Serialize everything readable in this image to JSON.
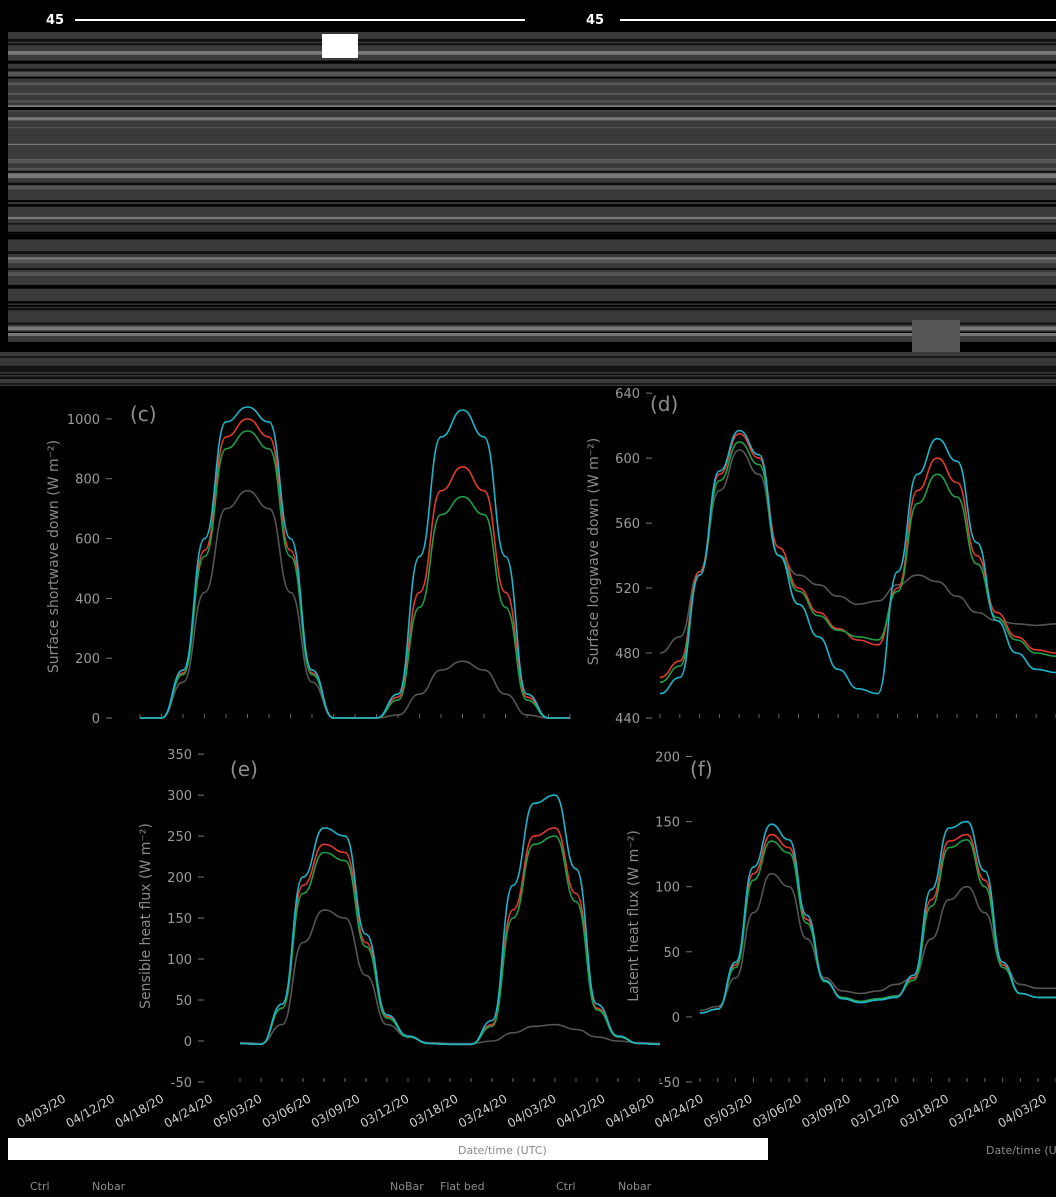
{
  "overlay": {
    "top_left_number": "45",
    "top_right_number": "45"
  },
  "x_tick_labels": [
    "04/03/20",
    "04/12/20",
    "04/18/20",
    "04/24/20",
    "05/03/20",
    "03/06/20",
    "03/09/20",
    "03/12/20",
    "03/18/20",
    "03/24/20",
    "04/03/20",
    "04/12/20",
    "04/18/20",
    "04/24/20",
    "05/03/20",
    "03/06/20",
    "03/09/20",
    "03/12/20",
    "03/18/20",
    "03/24/20",
    "04/03/20"
  ],
  "x_axis_label": "Date/time (UTC)",
  "legend_fragments": [
    "Ctrl",
    "Nobar",
    "NoBar",
    "Flat bed"
  ],
  "colors": {
    "black_series": "#555555",
    "red": "#e33a2f",
    "green": "#1f9e48",
    "cyan": "#1fb5c9",
    "magenta": "#c23cd6",
    "orange": "#e0962a",
    "blue": "#3a5fd6",
    "yellow": "#d8d23a"
  },
  "chart_data": [
    {
      "panel": "c",
      "type": "line",
      "panel_label": "(c)",
      "ylabel": "Surface shortwave down (W m⁻²)",
      "y_ticks": [
        0,
        200,
        400,
        600,
        800,
        1000
      ],
      "ylim": [
        0,
        1080
      ],
      "x": [
        0,
        0.05,
        0.1,
        0.15,
        0.2,
        0.25,
        0.3,
        0.35,
        0.4,
        0.45,
        0.5,
        0.55,
        0.6,
        0.65,
        0.7,
        0.75,
        0.8,
        0.85,
        0.9,
        0.95,
        1.0
      ],
      "series": [
        {
          "color": "#555555",
          "values": [
            0,
            0,
            120,
            420,
            700,
            760,
            700,
            420,
            120,
            0,
            0,
            0,
            10,
            80,
            160,
            190,
            160,
            80,
            10,
            0,
            0
          ]
        },
        {
          "color": "#e33a2f",
          "values": [
            0,
            0,
            150,
            560,
            940,
            1000,
            940,
            560,
            150,
            0,
            0,
            0,
            70,
            420,
            760,
            840,
            760,
            420,
            70,
            0,
            0
          ]
        },
        {
          "color": "#1f9e48",
          "values": [
            0,
            0,
            145,
            540,
            900,
            960,
            900,
            540,
            145,
            0,
            0,
            0,
            60,
            370,
            680,
            740,
            680,
            370,
            60,
            0,
            0
          ]
        },
        {
          "color": "#1fb5c9",
          "values": [
            0,
            0,
            160,
            600,
            990,
            1040,
            990,
            600,
            160,
            0,
            0,
            0,
            80,
            540,
            940,
            1030,
            940,
            540,
            80,
            0,
            0
          ]
        }
      ]
    },
    {
      "panel": "d",
      "type": "line",
      "panel_label": "(d)",
      "ylabel": "Surface longwave down (W m⁻²)",
      "y_ticks": [
        440,
        480,
        520,
        560,
        600,
        640
      ],
      "ylim": [
        440,
        645
      ],
      "x": [
        0,
        0.05,
        0.1,
        0.15,
        0.2,
        0.25,
        0.3,
        0.35,
        0.4,
        0.45,
        0.5,
        0.55,
        0.6,
        0.65,
        0.7,
        0.75,
        0.8,
        0.85,
        0.9,
        0.95,
        1.0
      ],
      "series": [
        {
          "color": "#555555",
          "values": [
            480,
            490,
            530,
            580,
            605,
            590,
            540,
            528,
            522,
            515,
            510,
            512,
            522,
            528,
            524,
            515,
            505,
            500,
            498,
            497,
            498
          ]
        },
        {
          "color": "#e33a2f",
          "values": [
            465,
            475,
            530,
            590,
            615,
            600,
            545,
            520,
            505,
            495,
            488,
            485,
            520,
            580,
            600,
            585,
            540,
            505,
            490,
            482,
            480
          ]
        },
        {
          "color": "#1f9e48",
          "values": [
            462,
            472,
            528,
            586,
            610,
            596,
            540,
            518,
            503,
            494,
            490,
            488,
            518,
            572,
            590,
            576,
            535,
            502,
            488,
            480,
            478
          ]
        },
        {
          "color": "#1fb5c9",
          "values": [
            455,
            465,
            528,
            592,
            617,
            602,
            540,
            510,
            490,
            470,
            458,
            455,
            530,
            590,
            612,
            598,
            548,
            500,
            480,
            470,
            468
          ]
        }
      ]
    },
    {
      "panel": "e",
      "type": "line",
      "panel_label": "(e)",
      "ylabel": "Sensible heat flux (W m⁻²)",
      "y_ticks": [
        -50,
        0,
        50,
        100,
        150,
        200,
        250,
        300,
        350
      ],
      "ylim": [
        -50,
        355
      ],
      "x": [
        0,
        0.05,
        0.1,
        0.15,
        0.2,
        0.25,
        0.3,
        0.35,
        0.4,
        0.45,
        0.5,
        0.55,
        0.6,
        0.65,
        0.7,
        0.75,
        0.8,
        0.85,
        0.9,
        0.95,
        1.0
      ],
      "series": [
        {
          "color": "#555555",
          "values": [
            -2,
            -3,
            20,
            120,
            160,
            150,
            80,
            20,
            5,
            -2,
            -3,
            -3,
            0,
            10,
            18,
            20,
            14,
            5,
            0,
            -2,
            -3
          ]
        },
        {
          "color": "#e33a2f",
          "values": [
            -3,
            -4,
            40,
            190,
            240,
            230,
            120,
            30,
            5,
            -3,
            -4,
            -4,
            20,
            160,
            250,
            260,
            180,
            40,
            5,
            -3,
            -4
          ]
        },
        {
          "color": "#1f9e48",
          "values": [
            -3,
            -4,
            40,
            180,
            230,
            220,
            115,
            28,
            5,
            -3,
            -4,
            -4,
            18,
            150,
            240,
            250,
            170,
            38,
            5,
            -3,
            -4
          ]
        },
        {
          "color": "#1fb5c9",
          "values": [
            -3,
            -4,
            45,
            200,
            260,
            250,
            130,
            32,
            6,
            -3,
            -4,
            -4,
            25,
            190,
            290,
            300,
            210,
            45,
            6,
            -3,
            -4
          ]
        }
      ]
    },
    {
      "panel": "f",
      "type": "line",
      "panel_label": "(f)",
      "ylabel": "Latent heat flux (W m⁻²)",
      "y_ticks": [
        -50,
        0,
        50,
        100,
        150,
        200
      ],
      "ylim": [
        -50,
        205
      ],
      "x": [
        0,
        0.05,
        0.1,
        0.15,
        0.2,
        0.25,
        0.3,
        0.35,
        0.4,
        0.45,
        0.5,
        0.55,
        0.6,
        0.65,
        0.7,
        0.75,
        0.8,
        0.85,
        0.9,
        0.95,
        1.0
      ],
      "series": [
        {
          "color": "#555555",
          "values": [
            5,
            8,
            30,
            80,
            110,
            100,
            60,
            30,
            20,
            18,
            20,
            25,
            30,
            60,
            90,
            100,
            80,
            40,
            25,
            22,
            22
          ]
        },
        {
          "color": "#e33a2f",
          "values": [
            3,
            6,
            40,
            110,
            140,
            130,
            75,
            28,
            15,
            12,
            14,
            16,
            30,
            90,
            135,
            140,
            105,
            40,
            18,
            15,
            15
          ]
        },
        {
          "color": "#1f9e48",
          "values": [
            3,
            6,
            38,
            105,
            135,
            126,
            72,
            27,
            15,
            12,
            14,
            16,
            28,
            85,
            130,
            136,
            100,
            38,
            18,
            15,
            15
          ]
        },
        {
          "color": "#1fb5c9",
          "values": [
            3,
            6,
            42,
            115,
            148,
            136,
            78,
            28,
            14,
            11,
            13,
            15,
            32,
            98,
            145,
            150,
            112,
            42,
            18,
            15,
            15
          ]
        }
      ]
    }
  ]
}
